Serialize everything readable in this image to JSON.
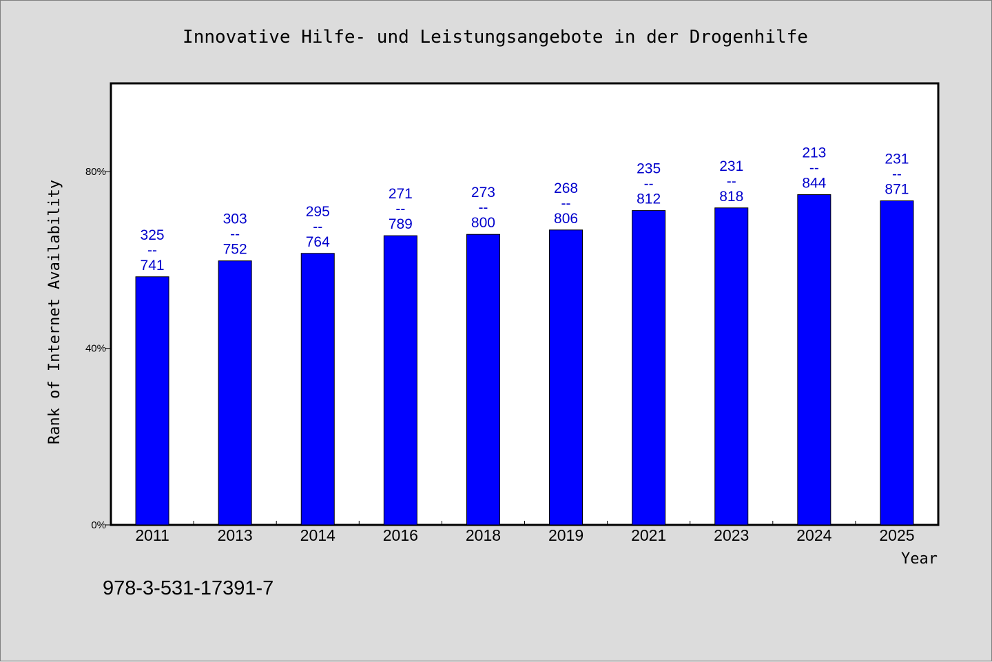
{
  "chart_data": {
    "type": "bar",
    "title": "Innovative Hilfe- und Leistungsangebote in der Drogenhilfe",
    "xlabel": "Year",
    "ylabel": "Rank of Internet Availability",
    "categories": [
      "2011",
      "2013",
      "2014",
      "2016",
      "2018",
      "2019",
      "2021",
      "2023",
      "2024",
      "2025"
    ],
    "values": [
      56.2,
      59.8,
      61.5,
      65.5,
      65.8,
      66.8,
      71.2,
      71.8,
      74.8,
      73.4
    ],
    "data_labels": [
      [
        "325",
        "--",
        "741"
      ],
      [
        "303",
        "--",
        "752"
      ],
      [
        "295",
        "--",
        "764"
      ],
      [
        "271",
        "--",
        "789"
      ],
      [
        "273",
        "--",
        "800"
      ],
      [
        "268",
        "--",
        "806"
      ],
      [
        "235",
        "--",
        "812"
      ],
      [
        "231",
        "--",
        "818"
      ],
      [
        "213",
        "--",
        "844"
      ],
      [
        "231",
        "--",
        "871"
      ]
    ],
    "y_ticks": [
      {
        "value": 0,
        "label": "0%"
      },
      {
        "value": 40,
        "label": "40%"
      },
      {
        "value": 80,
        "label": "80%"
      }
    ],
    "ylim": [
      0,
      100
    ],
    "grid": false,
    "legend": "none",
    "colors": {
      "bar": "#0000ff",
      "bar_outline": "#000000",
      "data_label": "#0000cc",
      "plot_bg": "#ffffff",
      "page_bg": "#dcdcdc"
    }
  },
  "footnote": "978-3-531-17391-7"
}
